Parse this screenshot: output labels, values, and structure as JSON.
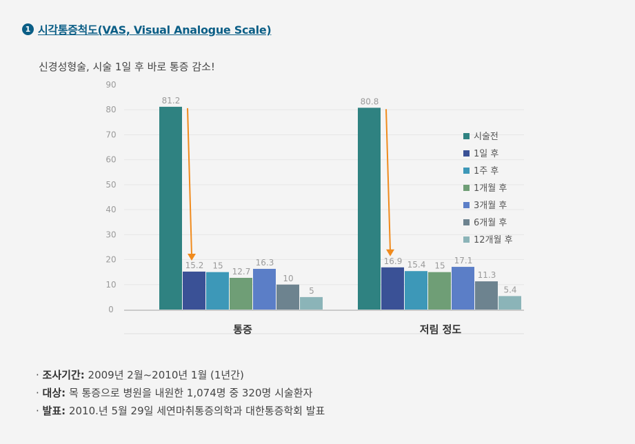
{
  "heading": {
    "number": "1",
    "title": "시각통증척도(VAS, Visual Analogue Scale)"
  },
  "subtitle": "신경성형술, 시술 1일 후 바로 통증 감소!",
  "chart_data": {
    "type": "bar",
    "categories": [
      "통증",
      "저림 정도"
    ],
    "series": [
      {
        "name": "시술전",
        "values": [
          81.2,
          80.8
        ],
        "labels": [
          "81.2",
          "80.8"
        ],
        "color": "#2f8281"
      },
      {
        "name": "1일 후",
        "values": [
          15.2,
          16.9
        ],
        "labels": [
          "15.2",
          "16.9"
        ],
        "color": "#3a5196"
      },
      {
        "name": "1주 후",
        "values": [
          15,
          15.4
        ],
        "labels": [
          "15",
          "15.4"
        ],
        "color": "#3d98b8"
      },
      {
        "name": "1개월 후",
        "values": [
          12.7,
          15
        ],
        "labels": [
          "12.7",
          "15"
        ],
        "color": "#6f9e76"
      },
      {
        "name": "3개월 후",
        "values": [
          16.3,
          17.1
        ],
        "labels": [
          "16.3",
          "17.1"
        ],
        "color": "#5b7ec7"
      },
      {
        "name": "6개월 후",
        "values": [
          10,
          11.3
        ],
        "labels": [
          "10",
          "11.3"
        ],
        "color": "#6d838f"
      },
      {
        "name": "12개월 후",
        "values": [
          5,
          5.4
        ],
        "labels": [
          "5",
          "5.4"
        ],
        "color": "#8bb4b8"
      }
    ],
    "yticks": [
      "90",
      "80",
      "70",
      "60",
      "50",
      "40",
      "30",
      "20",
      "10",
      "0"
    ],
    "ylim": [
      0,
      90
    ],
    "grid": true,
    "legend": "right",
    "arrow_color": "#f08a1c"
  },
  "info": [
    {
      "label": "조사기간:",
      "text": "2009년 2월~2010년 1월 (1년간)"
    },
    {
      "label": "대상:",
      "text": "목 통증으로 병원을 내원한 1,074명 중 320명 시술환자"
    },
    {
      "label": "발표:",
      "text": "2010.년 5월 29일 세연마취통증의학과 대한통증학회 발표"
    }
  ]
}
